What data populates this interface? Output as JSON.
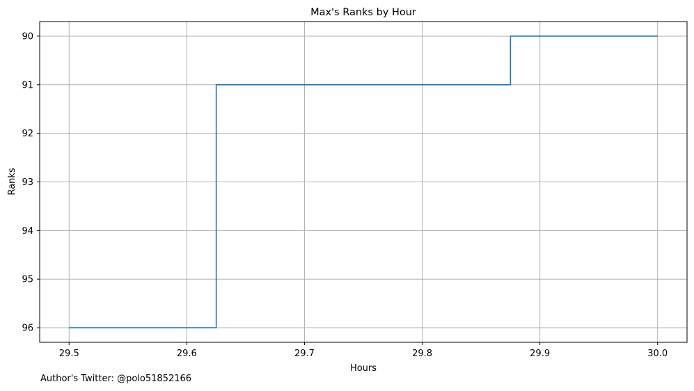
{
  "chart_data": {
    "type": "line",
    "step": "post",
    "title": "Max's Ranks by Hour",
    "xlabel": "Hours",
    "ylabel": "Ranks",
    "xlim": [
      29.475,
      30.025
    ],
    "ylim": [
      96.3,
      89.7
    ],
    "y_inverted": true,
    "grid": true,
    "x_ticks": [
      29.5,
      29.6,
      29.7,
      29.8,
      29.9,
      30.0
    ],
    "x_tick_labels": [
      "29.5",
      "29.6",
      "29.7",
      "29.8",
      "29.9",
      "30.0"
    ],
    "y_ticks": [
      90,
      91,
      92,
      93,
      94,
      95,
      96
    ],
    "y_tick_labels": [
      "90",
      "91",
      "92",
      "93",
      "94",
      "95",
      "96"
    ],
    "series": [
      {
        "color": "#1f77b4",
        "x": [
          29.5,
          29.625,
          29.875,
          30.0
        ],
        "y": [
          96,
          91,
          90,
          90
        ]
      }
    ]
  },
  "footer": {
    "text": "Author's Twitter: @polo51852166"
  }
}
